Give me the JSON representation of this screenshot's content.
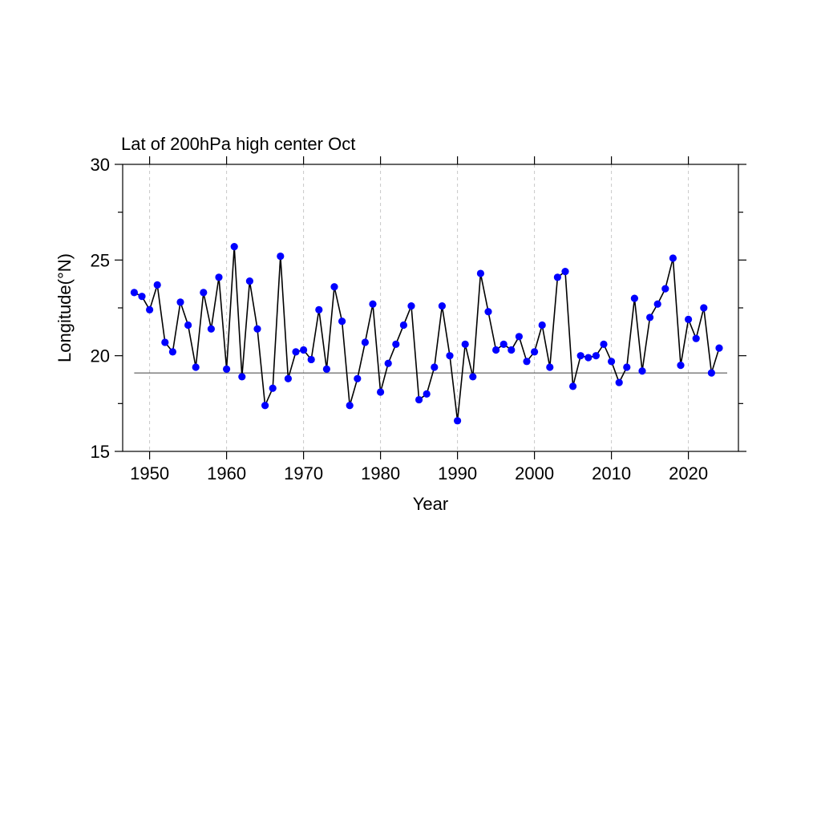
{
  "chart_data": {
    "type": "line",
    "title": "Lat of 200hPa high center Oct",
    "xlabel": "Year",
    "ylabel": "Longitude(°N)",
    "xlim": [
      1946.5,
      2026.5
    ],
    "ylim": [
      15,
      30
    ],
    "xticks": [
      1950,
      1960,
      1970,
      1980,
      1990,
      2000,
      2010,
      2020
    ],
    "xtick_labels": [
      "1950",
      "1960",
      "1970",
      "1980",
      "1990",
      "2000",
      "2010",
      "2020"
    ],
    "yticks": [
      15,
      20,
      25,
      30
    ],
    "ytick_labels": [
      "15",
      "20",
      "25",
      "30"
    ],
    "y_minor_ticks": [
      17.5,
      22.5,
      27.5
    ],
    "grid": "vertical dashed at major x ticks",
    "reference_line": 19.1,
    "line_color": "#000000",
    "marker_color": "#0000ff",
    "x": [
      1948,
      1949,
      1950,
      1951,
      1952,
      1953,
      1954,
      1955,
      1956,
      1957,
      1958,
      1959,
      1960,
      1961,
      1962,
      1963,
      1964,
      1965,
      1966,
      1967,
      1968,
      1969,
      1970,
      1971,
      1972,
      1973,
      1974,
      1975,
      1976,
      1977,
      1978,
      1979,
      1980,
      1981,
      1982,
      1983,
      1984,
      1985,
      1986,
      1987,
      1988,
      1989,
      1990,
      1991,
      1992,
      1993,
      1994,
      1995,
      1996,
      1997,
      1998,
      1999,
      2000,
      2001,
      2002,
      2003,
      2004,
      2005,
      2006,
      2007,
      2008,
      2009,
      2010,
      2011,
      2012,
      2013,
      2014,
      2015,
      2016,
      2017,
      2018,
      2019,
      2020,
      2021,
      2022,
      2023,
      2024
    ],
    "y": [
      23.3,
      23.1,
      22.4,
      23.7,
      20.7,
      20.2,
      22.8,
      21.6,
      19.4,
      23.3,
      21.4,
      24.1,
      19.3,
      25.7,
      18.9,
      23.9,
      21.4,
      17.4,
      18.3,
      25.2,
      18.8,
      20.2,
      20.3,
      19.8,
      22.4,
      19.3,
      23.6,
      21.8,
      17.4,
      18.8,
      20.7,
      22.7,
      18.1,
      19.6,
      20.6,
      21.6,
      22.6,
      17.7,
      18.0,
      19.4,
      22.6,
      20.0,
      16.6,
      20.6,
      18.9,
      24.3,
      22.3,
      20.3,
      20.6,
      20.3,
      21.0,
      19.7,
      20.2,
      21.6,
      19.4,
      24.1,
      24.4,
      18.4,
      20.0,
      19.9,
      20.0,
      20.6,
      19.7,
      18.6,
      19.4,
      23.0,
      19.2,
      22.0,
      22.7,
      23.5,
      25.1,
      19.5,
      21.9,
      20.9,
      22.5,
      19.1,
      20.4
    ]
  }
}
